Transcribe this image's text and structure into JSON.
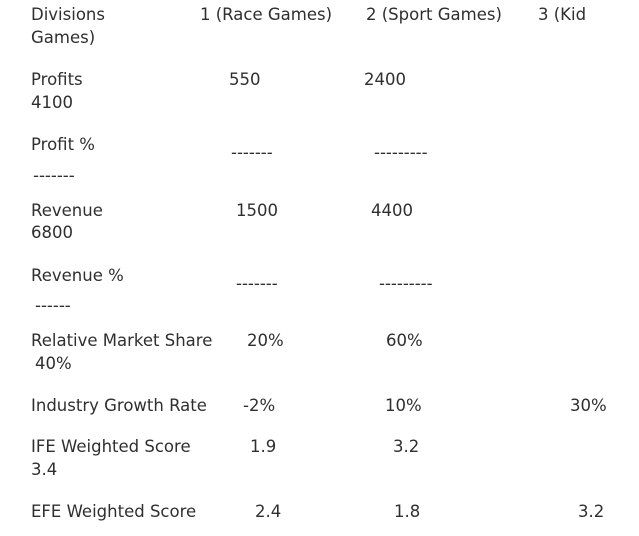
{
  "header": {
    "divisions_label": "Divisions",
    "games_label": "Games)",
    "col1": "1 (Race Games)",
    "col2": "2 (Sport Games)",
    "col3": "3 (Kid"
  },
  "rows": {
    "profits": {
      "label": "Profits",
      "v1": "550",
      "v2": "2400",
      "v3": "4100"
    },
    "profit_pct": {
      "label": "Profit %",
      "d1": "-------",
      "d2": "---------",
      "d3": "-------"
    },
    "revenue": {
      "label": "Revenue",
      "v1": "1500",
      "v2": "4400",
      "v3": "6800"
    },
    "revenue_pct": {
      "label": "Revenue %",
      "d1": "-------",
      "d2": "---------",
      "d3": "------"
    },
    "rms": {
      "label": "Relative Market Share",
      "v1": "20%",
      "v2": "60%",
      "v3": "40%"
    },
    "igr": {
      "label": "Industry Growth Rate",
      "v1": "-2%",
      "v2": "10%",
      "v3": "30%"
    },
    "ife": {
      "label": "IFE Weighted Score",
      "v1": "1.9",
      "v2": "3.2",
      "v3": "3.4"
    },
    "efe": {
      "label": "EFE Weighted Score",
      "v1": "2.4",
      "v2": "1.8",
      "v3": "3.2"
    }
  }
}
